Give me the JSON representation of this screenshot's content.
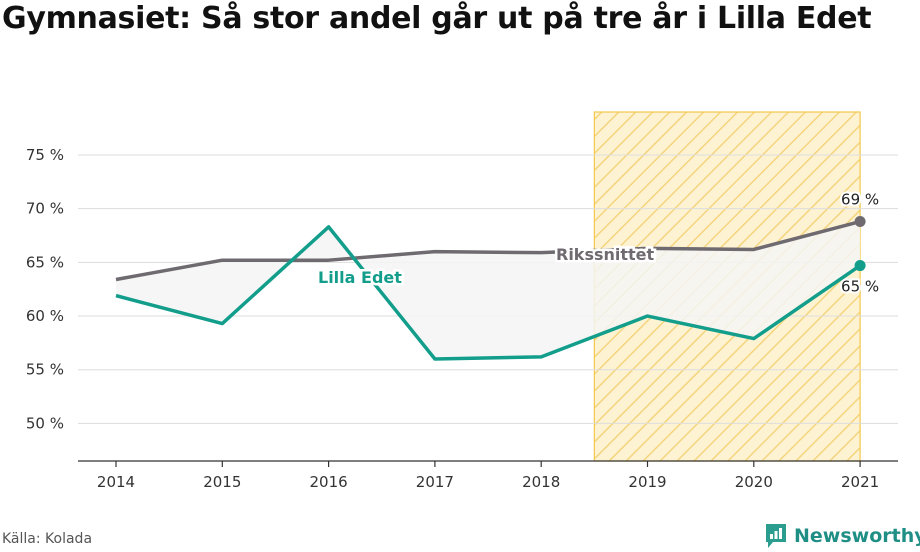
{
  "title": "Gymnasiet: Så stor andel går ut på tre år i Lilla Edet",
  "source": "Källa: Kolada",
  "brand": {
    "name": "Newsworthy",
    "icon": "newsworthy-logo-icon"
  },
  "colors": {
    "rikssnittet": "#6e6a70",
    "lilla_edet": "#139e8c",
    "highlight": "#f3c74b",
    "grid": "#dddddd",
    "fill": "#f5f5f5"
  },
  "chart_data": {
    "type": "line",
    "x": [
      "2014",
      "2015",
      "2016",
      "2017",
      "2018",
      "2019",
      "2020",
      "2021"
    ],
    "series": [
      {
        "name": "Rikssnittet",
        "values": [
          63.4,
          65.2,
          65.2,
          66.0,
          65.9,
          66.3,
          66.2,
          68.8
        ]
      },
      {
        "name": "Lilla Edet",
        "values": [
          61.9,
          59.3,
          68.3,
          56.0,
          56.2,
          60.0,
          57.9,
          64.7
        ]
      }
    ],
    "yticks": [
      "50 %",
      "55 %",
      "60 %",
      "65 %",
      "70 %",
      "75 %"
    ],
    "ylim": [
      46.5,
      79
    ],
    "highlight_range": [
      "2018.5",
      "2021"
    ],
    "end_labels": {
      "Rikssnittet": "69 %",
      "Lilla Edet": "65 %"
    },
    "grid": true
  }
}
